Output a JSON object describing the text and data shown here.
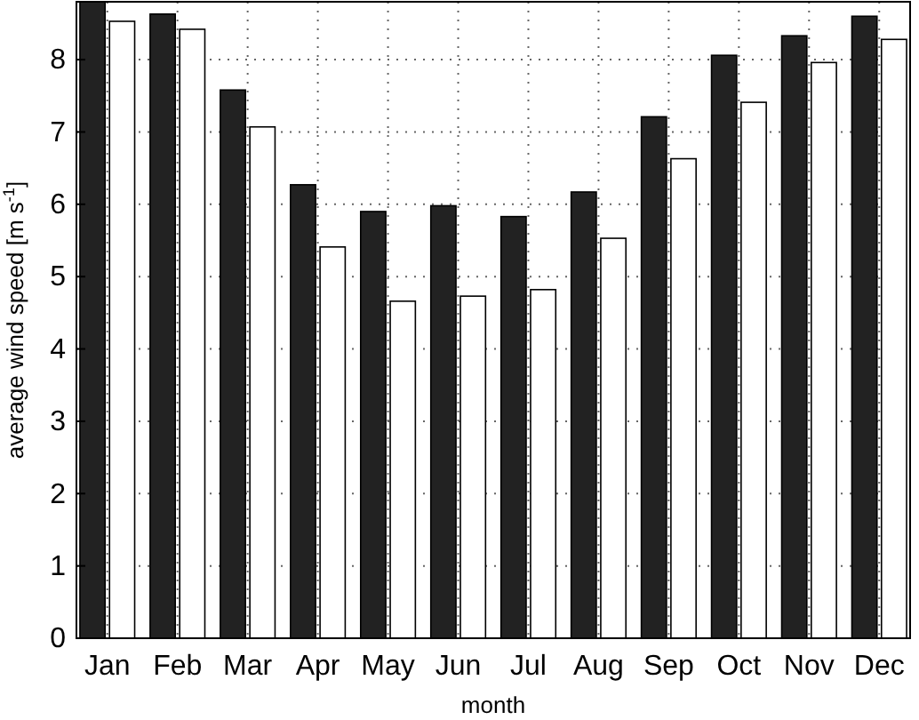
{
  "chart_data": {
    "type": "bar",
    "xlabel": "month",
    "ylabel": "average wind speed [m s$^{-1}$]",
    "categories": [
      "Jan",
      "Feb",
      "Mar",
      "Apr",
      "May",
      "Jun",
      "Jul",
      "Aug",
      "Sep",
      "Oct",
      "Nov",
      "Dec"
    ],
    "series": [
      {
        "color": "#222222",
        "values": [
          8.8,
          8.63,
          7.58,
          6.27,
          5.9,
          5.98,
          5.83,
          6.17,
          7.21,
          8.06,
          8.33,
          8.6
        ]
      },
      {
        "color": "#ffffff",
        "values": [
          8.53,
          8.42,
          7.07,
          5.41,
          4.66,
          4.73,
          4.82,
          5.53,
          6.63,
          7.41,
          7.96,
          8.28
        ]
      }
    ],
    "ylim": [
      0,
      8.8
    ],
    "yticks": [
      0,
      1,
      2,
      3,
      4,
      5,
      6,
      7,
      8
    ],
    "grid": true
  }
}
